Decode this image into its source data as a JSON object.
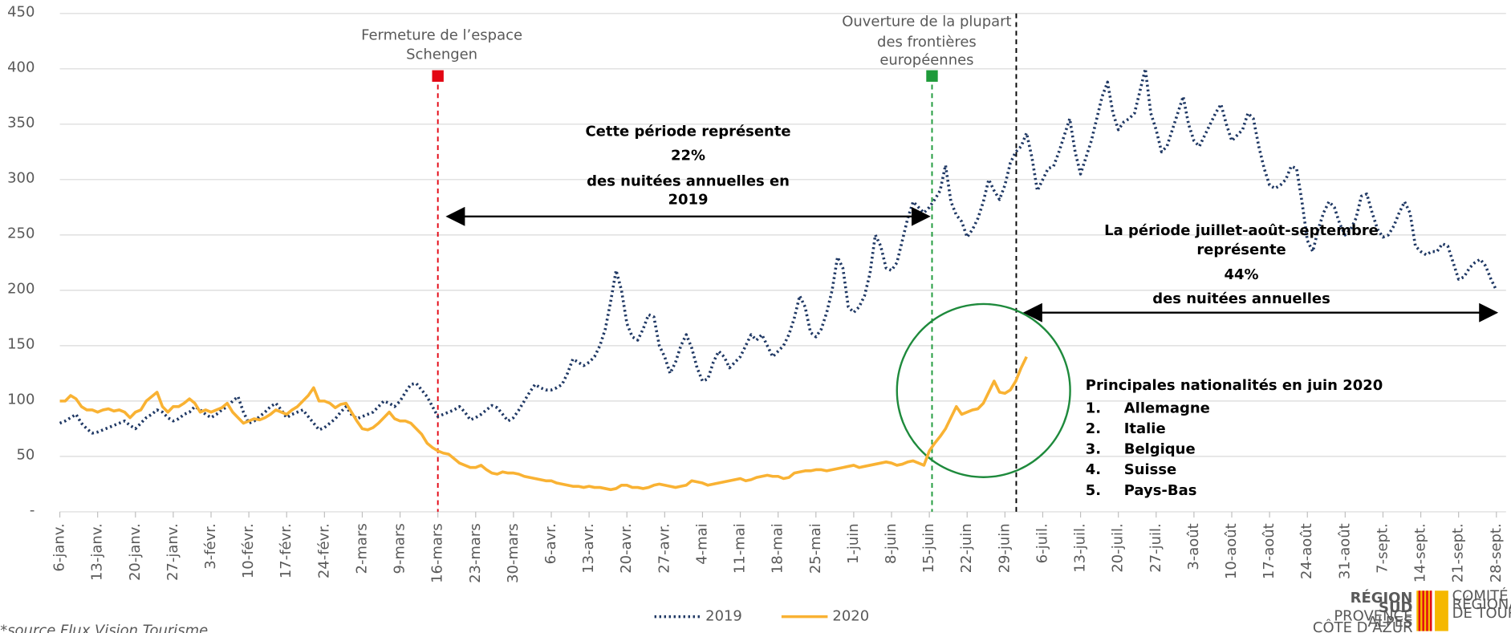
{
  "chart_data": {
    "type": "line",
    "categories": [
      "6-janv.",
      null,
      null,
      null,
      null,
      null,
      null,
      "13-janv.",
      null,
      null,
      null,
      null,
      null,
      null,
      "20-janv.",
      null,
      null,
      null,
      null,
      null,
      null,
      "27-janv.",
      null,
      null,
      null,
      null,
      null,
      null,
      "3-févr.",
      null,
      null,
      null,
      null,
      null,
      null,
      "10-févr.",
      null,
      null,
      null,
      null,
      null,
      null,
      "17-févr.",
      null,
      null,
      null,
      null,
      null,
      null,
      "24-févr.",
      null,
      null,
      null,
      null,
      null,
      null,
      "2-mars",
      null,
      null,
      null,
      null,
      null,
      null,
      "9-mars",
      null,
      null,
      null,
      null,
      null,
      null,
      "16-mars",
      null,
      null,
      null,
      null,
      null,
      null,
      "23-mars",
      null,
      null,
      null,
      null,
      null,
      null,
      "30-mars",
      null,
      null,
      null,
      null,
      null,
      null,
      "6-avr.",
      null,
      null,
      null,
      null,
      null,
      null,
      "13-avr.",
      null,
      null,
      null,
      null,
      null,
      null,
      "20-avr.",
      null,
      null,
      null,
      null,
      null,
      null,
      "27-avr.",
      null,
      null,
      null,
      null,
      null,
      null,
      "4-mai",
      null,
      null,
      null,
      null,
      null,
      null,
      "11-mai",
      null,
      null,
      null,
      null,
      null,
      null,
      "18-mai",
      null,
      null,
      null,
      null,
      null,
      null,
      "25-mai",
      null,
      null,
      null,
      null,
      null,
      null,
      "1-juin",
      null,
      null,
      null,
      null,
      null,
      null,
      "8-juin",
      null,
      null,
      null,
      null,
      null,
      null,
      "15-juin",
      null,
      null,
      null,
      null,
      null,
      null,
      "22-juin",
      null,
      null,
      null,
      null,
      null,
      null,
      "29-juin",
      null,
      null,
      null,
      null,
      null,
      null,
      "6-juil.",
      null,
      null,
      null,
      null,
      null,
      null,
      "13-juil.",
      null,
      null,
      null,
      null,
      null,
      null,
      "20-juil.",
      null,
      null,
      null,
      null,
      null,
      null,
      "27-juil.",
      null,
      null,
      null,
      null,
      null,
      null,
      "3-août",
      null,
      null,
      null,
      null,
      null,
      null,
      "10-août",
      null,
      null,
      null,
      null,
      null,
      null,
      "17-août",
      null,
      null,
      null,
      null,
      null,
      null,
      "24-août",
      null,
      null,
      null,
      null,
      null,
      null,
      "31-août",
      null,
      null,
      null,
      null,
      null,
      null,
      "7-sept.",
      null,
      null,
      null,
      null,
      null,
      null,
      "14-sept.",
      null,
      null,
      null,
      null,
      null,
      null,
      "21-sept.",
      null,
      null,
      null,
      null,
      null,
      null,
      "28-sept."
    ],
    "series": [
      {
        "name": "2019",
        "color": "#1f3864",
        "dash": true,
        "values": [
          80,
          82,
          85,
          88,
          80,
          75,
          71,
          72,
          74,
          76,
          78,
          80,
          82,
          78,
          75,
          80,
          85,
          88,
          92,
          90,
          85,
          82,
          84,
          88,
          90,
          95,
          92,
          88,
          85,
          88,
          92,
          95,
          100,
          104,
          90,
          80,
          82,
          86,
          90,
          95,
          98,
          92,
          85,
          88,
          90,
          92,
          86,
          80,
          74,
          76,
          80,
          84,
          90,
          95,
          88,
          84,
          86,
          88,
          90,
          95,
          100,
          98,
          95,
          100,
          108,
          115,
          116,
          110,
          104,
          95,
          86,
          88,
          90,
          92,
          95,
          90,
          83,
          85,
          88,
          92,
          96,
          94,
          88,
          82,
          85,
          92,
          100,
          108,
          115,
          112,
          110,
          110,
          112,
          115,
          125,
          138,
          135,
          132,
          135,
          140,
          150,
          165,
          190,
          218,
          200,
          170,
          158,
          155,
          165,
          178,
          176,
          150,
          140,
          125,
          135,
          150,
          160,
          148,
          130,
          118,
          120,
          135,
          145,
          140,
          130,
          135,
          140,
          150,
          160,
          155,
          160,
          150,
          140,
          145,
          150,
          160,
          175,
          195,
          185,
          162,
          158,
          165,
          180,
          200,
          230,
          220,
          185,
          180,
          185,
          195,
          215,
          250,
          240,
          220,
          218,
          225,
          245,
          265,
          280,
          275,
          270,
          275,
          282,
          290,
          313,
          280,
          268,
          262,
          248,
          255,
          265,
          280,
          300,
          290,
          282,
          295,
          315,
          325,
          330,
          342,
          320,
          290,
          300,
          310,
          312,
          325,
          340,
          355,
          325,
          305,
          320,
          335,
          355,
          375,
          388,
          360,
          345,
          352,
          355,
          360,
          380,
          400,
          360,
          345,
          325,
          330,
          345,
          360,
          375,
          350,
          335,
          330,
          340,
          350,
          360,
          368,
          350,
          335,
          340,
          345,
          360,
          355,
          330,
          310,
          295,
          292,
          295,
          300,
          312,
          310,
          280,
          245,
          235,
          255,
          270,
          280,
          275,
          260,
          250,
          255,
          265,
          285,
          287,
          270,
          255,
          248,
          250,
          258,
          270,
          280,
          270,
          240,
          235,
          232,
          235,
          235,
          242,
          240,
          225,
          210,
          212,
          220,
          225,
          228,
          222,
          210,
          200
        ]
      },
      {
        "name": "2020",
        "color": "#f9b233",
        "dash": false,
        "values": [
          100,
          100,
          105,
          102,
          95,
          92,
          92,
          90,
          92,
          93,
          91,
          92,
          90,
          85,
          90,
          92,
          100,
          104,
          108,
          95,
          90,
          95,
          95,
          98,
          102,
          98,
          90,
          92,
          90,
          92,
          94,
          98,
          90,
          85,
          80,
          82,
          84,
          83,
          85,
          88,
          92,
          90,
          88,
          92,
          95,
          100,
          105,
          112,
          100,
          100,
          98,
          94,
          97,
          98,
          90,
          82,
          75,
          74,
          76,
          80,
          85,
          90,
          84,
          82,
          82,
          80,
          75,
          70,
          62,
          58,
          55,
          53,
          52,
          48,
          44,
          42,
          40,
          40,
          42,
          38,
          35,
          34,
          36,
          35,
          35,
          34,
          32,
          31,
          30,
          29,
          28,
          28,
          26,
          25,
          24,
          23,
          23,
          22,
          23,
          22,
          22,
          21,
          20,
          21,
          24,
          24,
          22,
          22,
          21,
          22,
          24,
          25,
          24,
          23,
          22,
          23,
          24,
          28,
          27,
          26,
          24,
          25,
          26,
          27,
          28,
          29,
          30,
          28,
          29,
          31,
          32,
          33,
          32,
          32,
          30,
          31,
          35,
          36,
          37,
          37,
          38,
          38,
          37,
          38,
          39,
          40,
          41,
          42,
          40,
          41,
          42,
          43,
          44,
          45,
          44,
          42,
          43,
          45,
          46,
          44,
          42,
          55,
          62,
          68,
          75,
          85,
          95,
          88,
          90,
          92,
          93,
          98,
          108,
          118,
          108,
          107,
          110,
          118,
          130,
          140,
          null,
          null,
          null,
          null,
          null,
          null,
          null,
          null,
          null,
          null,
          null,
          null,
          null,
          null,
          null,
          null,
          null,
          null,
          null,
          null,
          null,
          null,
          null,
          null,
          null,
          null,
          null,
          null,
          null,
          null,
          null,
          null,
          null,
          null,
          null,
          null,
          null,
          null,
          null,
          null,
          null,
          null,
          null,
          null,
          null,
          null,
          null,
          null,
          null,
          null,
          null,
          null,
          null,
          null,
          null,
          null,
          null,
          null,
          null,
          null,
          null,
          null,
          null,
          null,
          null,
          null,
          null,
          null,
          null,
          null,
          null,
          null,
          null,
          null,
          null,
          null,
          null,
          null,
          null,
          null,
          null,
          null,
          null,
          null,
          null,
          null,
          null
        ]
      }
    ],
    "ylim": [
      0,
      450
    ],
    "yticks": [
      {
        "value": 0,
        "label": "-"
      },
      50,
      100,
      150,
      200,
      250,
      300,
      350,
      400,
      450
    ],
    "grid": true,
    "annotations": {
      "closure": [
        "Fermeture de l’espace",
        "Schengen"
      ],
      "opening": [
        "Ouverture de la plupart",
        "des frontières",
        "européennes"
      ],
      "period1": [
        "Cette période représente",
        "22%",
        "des nuitées annuelles en",
        "2019"
      ],
      "period2": [
        "La période juillet-août-septembre",
        "représente",
        "44%",
        "des nuitées annuelles"
      ]
    },
    "nationalities": {
      "title": "Principales nationalités en juin 2020",
      "items": [
        [
          "1.",
          "Allemagne"
        ],
        [
          "2.",
          "Italie"
        ],
        [
          "3.",
          "Belgique"
        ],
        [
          "4.",
          "Suisse"
        ],
        [
          "5.",
          "Pays-Bas"
        ]
      ]
    },
    "source": "*source Flux Vision Tourisme",
    "logo": {
      "region": [
        "RÉGION",
        "SUD",
        "PROVENCE",
        "ALPES",
        "CÔTE D’AZUR"
      ],
      "crt": [
        "COMITÉ",
        "RÉGIONAL",
        "DE TOURISME"
      ]
    }
  }
}
